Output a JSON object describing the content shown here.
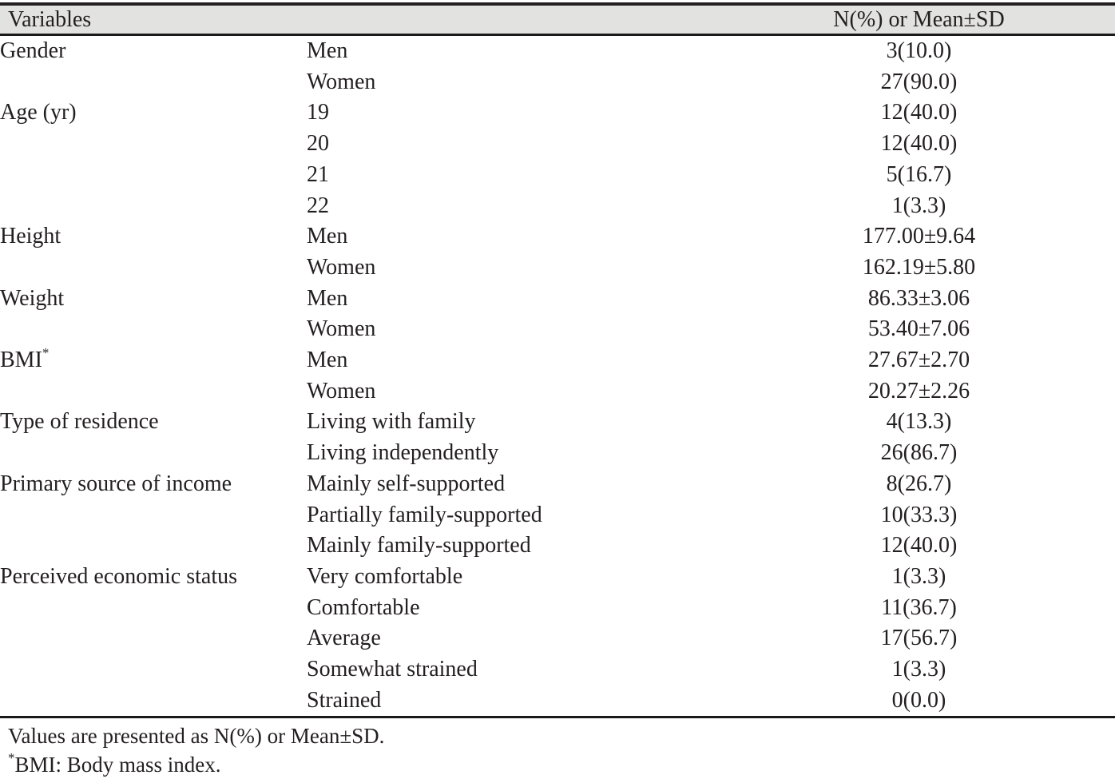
{
  "table": {
    "header": {
      "variables_label": "Variables",
      "value_label": "N(%) or Mean±SD"
    },
    "groups": [
      {
        "variable": "Gender",
        "marker": "",
        "rows": [
          {
            "category": "Men",
            "value": "3(10.0)"
          },
          {
            "category": "Women",
            "value": "27(90.0)"
          }
        ]
      },
      {
        "variable": "Age (yr)",
        "marker": "",
        "rows": [
          {
            "category": "19",
            "value": "12(40.0)"
          },
          {
            "category": "20",
            "value": "12(40.0)"
          },
          {
            "category": "21",
            "value": "5(16.7)"
          },
          {
            "category": "22",
            "value": "1(3.3)"
          }
        ]
      },
      {
        "variable": "Height",
        "marker": "",
        "rows": [
          {
            "category": "Men",
            "value": "177.00±9.64"
          },
          {
            "category": "Women",
            "value": "162.19±5.80"
          }
        ]
      },
      {
        "variable": "Weight",
        "marker": "",
        "rows": [
          {
            "category": "Men",
            "value": "86.33±3.06"
          },
          {
            "category": "Women",
            "value": "53.40±7.06"
          }
        ]
      },
      {
        "variable": "BMI",
        "marker": "*",
        "rows": [
          {
            "category": "Men",
            "value": "27.67±2.70"
          },
          {
            "category": "Women",
            "value": "20.27±2.26"
          }
        ]
      },
      {
        "variable": "Type of residence",
        "marker": "",
        "rows": [
          {
            "category": "Living with family",
            "value": "4(13.3)"
          },
          {
            "category": "Living independently",
            "value": "26(86.7)"
          }
        ]
      },
      {
        "variable": "Primary source of income",
        "marker": "",
        "rows": [
          {
            "category": "Mainly self-supported",
            "value": "8(26.7)"
          },
          {
            "category": "Partially family-supported",
            "value": "10(33.3)"
          },
          {
            "category": "Mainly family-supported",
            "value": "12(40.0)"
          }
        ]
      },
      {
        "variable": "Perceived economic status",
        "marker": "",
        "rows": [
          {
            "category": "Very comfortable",
            "value": "1(3.3)"
          },
          {
            "category": "Comfortable",
            "value": "11(36.7)"
          },
          {
            "category": "Average",
            "value": "17(56.7)"
          },
          {
            "category": "Somewhat strained",
            "value": "1(3.3)"
          },
          {
            "category": "Strained",
            "value": "0(0.0)"
          }
        ]
      }
    ],
    "footnotes": [
      {
        "marker": "",
        "text": "Values are presented as N(%) or Mean±SD."
      },
      {
        "marker": "*",
        "text": "BMI: Body mass index."
      }
    ]
  },
  "colors": {
    "text": "#231f20",
    "header_background": "#e2e2e0",
    "rule": "#1a1a1a",
    "page_background": "#ffffff"
  }
}
